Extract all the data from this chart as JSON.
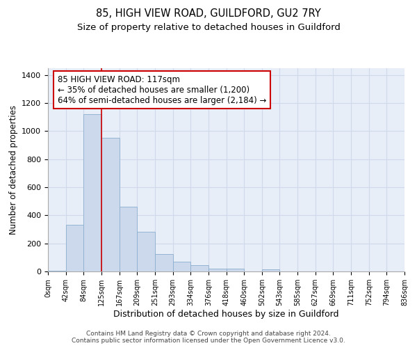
{
  "title_line1": "85, HIGH VIEW ROAD, GUILDFORD, GU2 7RY",
  "title_line2": "Size of property relative to detached houses in Guildford",
  "xlabel": "Distribution of detached houses by size in Guildford",
  "ylabel": "Number of detached properties",
  "bar_values": [
    5,
    330,
    1120,
    950,
    460,
    285,
    125,
    70,
    45,
    20,
    20,
    0,
    15,
    0,
    0,
    0,
    0,
    0,
    0,
    0
  ],
  "bin_labels": [
    "0sqm",
    "42sqm",
    "84sqm",
    "125sqm",
    "167sqm",
    "209sqm",
    "251sqm",
    "293sqm",
    "334sqm",
    "376sqm",
    "418sqm",
    "460sqm",
    "502sqm",
    "543sqm",
    "585sqm",
    "627sqm",
    "669sqm",
    "711sqm",
    "752sqm",
    "794sqm",
    "836sqm"
  ],
  "bar_color": "#ccd9ec",
  "bar_edge_color": "#8baecf",
  "grid_color": "#d0d9ea",
  "background_color": "#e8eef8",
  "annotation_box_color": "#ffffff",
  "annotation_border_color": "#cc0000",
  "red_line_x": 2.5,
  "annotation_text_line1": "85 HIGH VIEW ROAD: 117sqm",
  "annotation_text_line2": "← 35% of detached houses are smaller (1,200)",
  "annotation_text_line3": "64% of semi-detached houses are larger (2,184) →",
  "ylim": [
    0,
    1450
  ],
  "yticks": [
    0,
    200,
    400,
    600,
    800,
    1000,
    1200,
    1400
  ],
  "footer_line1": "Contains HM Land Registry data © Crown copyright and database right 2024.",
  "footer_line2": "Contains public sector information licensed under the Open Government Licence v3.0.",
  "title_fontsize": 10.5,
  "subtitle_fontsize": 9.5,
  "ylabel_fontsize": 8.5,
  "xlabel_fontsize": 9,
  "tick_fontsize": 8,
  "annotation_fontsize": 8.5,
  "footer_fontsize": 6.5
}
